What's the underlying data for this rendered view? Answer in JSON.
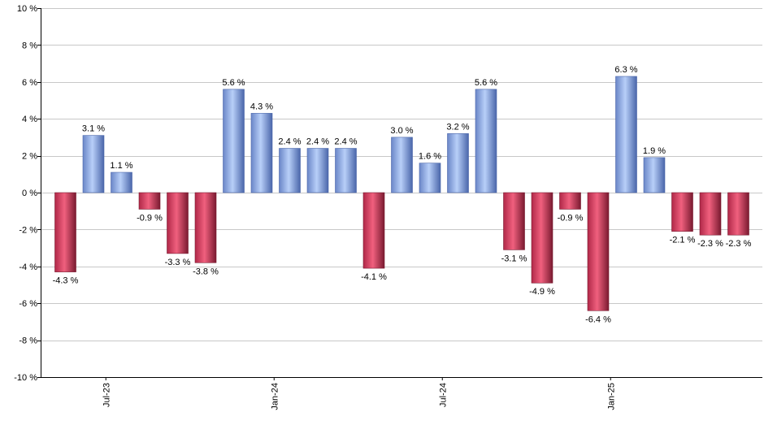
{
  "chart_data": {
    "type": "bar",
    "title": "",
    "xlabel": "",
    "ylabel": "",
    "ylim": [
      -10,
      10
    ],
    "y_ticks": [
      10,
      8,
      6,
      4,
      2,
      0,
      -2,
      -4,
      -6,
      -8,
      -10
    ],
    "y_tick_suffix": " %",
    "grid": true,
    "legend": "none",
    "x_tick_labels": [
      {
        "label": "Jul-23",
        "after_index": 1
      },
      {
        "label": "Jan-24",
        "after_index": 7
      },
      {
        "label": "Jul-24",
        "after_index": 13
      },
      {
        "label": "Jan-25",
        "after_index": 19
      }
    ],
    "values": [
      -4.3,
      3.1,
      1.1,
      -0.9,
      -3.3,
      -3.8,
      5.6,
      4.3,
      2.4,
      2.4,
      2.4,
      -4.1,
      3.0,
      1.6,
      3.2,
      5.6,
      -3.1,
      -4.9,
      -0.9,
      -6.4,
      6.3,
      1.9,
      -2.1,
      -2.3,
      -2.3
    ],
    "data_labels": [
      "-4.3 %",
      "3.1 %",
      "1.1 %",
      "-0.9 %",
      "-3.3 %",
      "-3.8 %",
      "5.6 %",
      "4.3 %",
      "2.4 %",
      "2.4 %",
      "2.4 %",
      "-4.1 %",
      "3.0 %",
      "1.6 %",
      "3.2 %",
      "5.6 %",
      "-3.1 %",
      "-4.9 %",
      "-0.9 %",
      "-6.4 %",
      "6.3 %",
      "1.9 %",
      "-2.1 %",
      "-2.3 %",
      "-2.3 %"
    ],
    "colors": {
      "positive": "#7f9fdf",
      "positive_light": "#b3cbf7",
      "positive_dark": "#4a66aa",
      "negative": "#c83a58",
      "negative_light": "#f05a7a",
      "negative_dark": "#7a1a30",
      "grid": "#c8c8c8",
      "axis": "#000000"
    }
  }
}
